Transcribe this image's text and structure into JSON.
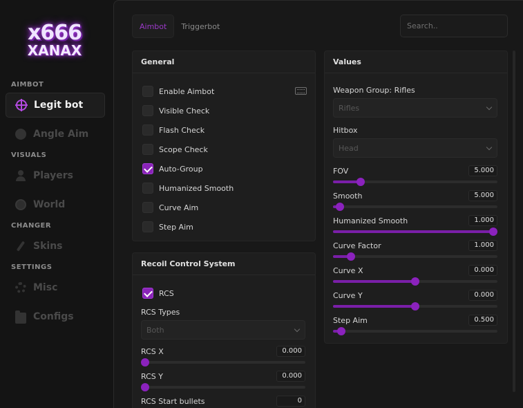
{
  "logo": {
    "line1": "x666",
    "line2": "XANAX"
  },
  "sidebar": {
    "sections": [
      {
        "label": "AIMBOT"
      },
      {
        "label": "VISUALS"
      },
      {
        "label": "CHANGER"
      },
      {
        "label": "SETTINGS"
      }
    ],
    "items": [
      {
        "label": "Legit bot",
        "icon": "crosshair-icon",
        "active": true
      },
      {
        "label": "Angle Aim",
        "icon": "skull-icon"
      },
      {
        "label": "Players",
        "icon": "person-icon"
      },
      {
        "label": "World",
        "icon": "globe-icon"
      },
      {
        "label": "Skins",
        "icon": "brush-icon"
      },
      {
        "label": "Misc",
        "icon": "gear-icon"
      },
      {
        "label": "Configs",
        "icon": "folder-icon"
      }
    ]
  },
  "tabs": [
    {
      "label": "Aimbot",
      "active": true
    },
    {
      "label": "Triggerbot"
    }
  ],
  "search": {
    "placeholder": "Search.."
  },
  "general": {
    "title": "General",
    "options": [
      {
        "label": "Enable Aimbot",
        "checked": false
      },
      {
        "label": "Visible Check",
        "checked": false
      },
      {
        "label": "Flash Check",
        "checked": false
      },
      {
        "label": "Scope Check",
        "checked": false
      },
      {
        "label": "Auto-Group",
        "checked": true
      },
      {
        "label": "Humanized Smooth",
        "checked": false
      },
      {
        "label": "Curve Aim",
        "checked": false
      },
      {
        "label": "Step Aim",
        "checked": false
      }
    ]
  },
  "rcs": {
    "title": "Recoil Control System",
    "toggle_label": "RCS",
    "toggle_checked": true,
    "types_label": "RCS Types",
    "types_value": "Both",
    "sliders": [
      {
        "label": "RCS X",
        "value": "0.000",
        "fraction": 0.0
      },
      {
        "label": "RCS Y",
        "value": "0.000",
        "fraction": 0.0
      },
      {
        "label": "RCS Start bullets",
        "value": "0",
        "fraction": 0.0
      }
    ]
  },
  "values": {
    "title": "Values",
    "weapon_group_label": "Weapon Group: Rifles",
    "weapon_group_value": "Rifles",
    "hitbox_label": "Hitbox",
    "hitbox_value": "Head",
    "sliders": [
      {
        "label": "FOV",
        "value": "5.000",
        "fraction": 0.17
      },
      {
        "label": "Smooth",
        "value": "5.000",
        "fraction": 0.04
      },
      {
        "label": "Humanized Smooth",
        "value": "1.000",
        "fraction": 1.0
      },
      {
        "label": "Curve Factor",
        "value": "1.000",
        "fraction": 0.11
      },
      {
        "label": "Curve X",
        "value": "0.000",
        "fraction": 0.5
      },
      {
        "label": "Curve Y",
        "value": "0.000",
        "fraction": 0.5
      },
      {
        "label": "Step Aim",
        "value": "0.500",
        "fraction": 0.05
      }
    ]
  },
  "colors": {
    "accent": "#8b22bd",
    "background": "#151515",
    "panel": "#1e1e1e"
  }
}
